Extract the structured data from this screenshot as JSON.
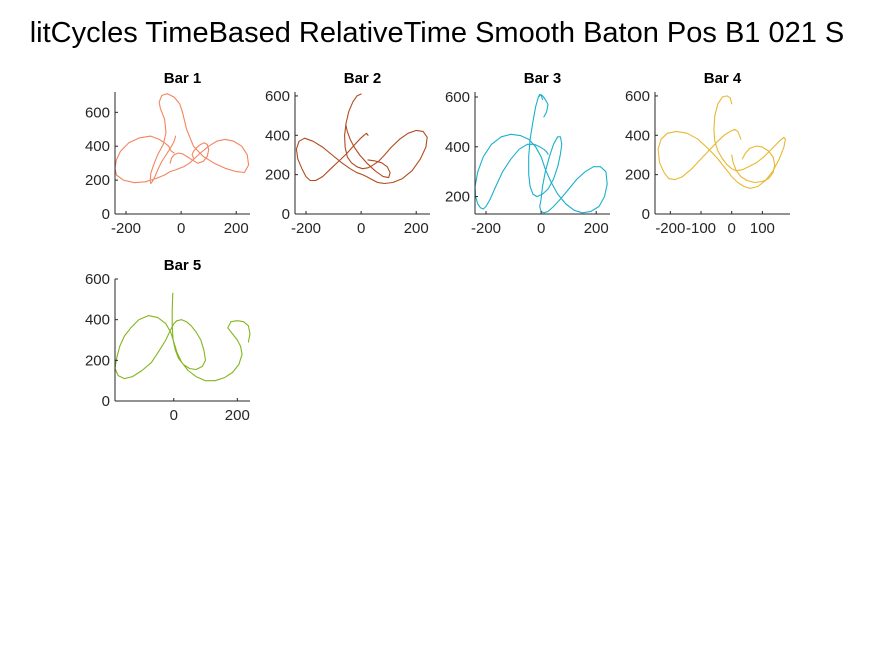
{
  "figure": {
    "title": "litCycles TimeBased RelativeTime Smooth Baton Pos B1 021 S"
  },
  "chart_data": [
    {
      "type": "line",
      "title": "Bar 1",
      "color": "#f4845f",
      "xlim": [
        -240,
        250
      ],
      "ylim": [
        0,
        720
      ],
      "xticks": [
        -200,
        0,
        200
      ],
      "yticks": [
        0,
        200,
        400,
        600
      ],
      "series": [
        {
          "x": [
            -20,
            -25,
            -35,
            -50,
            -70,
            -85,
            -95,
            -105,
            -110,
            -112,
            -110,
            -100,
            -85,
            -65,
            -55,
            -60,
            -75,
            -80,
            -70,
            -50,
            -25,
            -5,
            5,
            20,
            45,
            80,
            120,
            160,
            200,
            230,
            245,
            240,
            220,
            190,
            160,
            130,
            100,
            70,
            50,
            30,
            10,
            -5,
            -20,
            -40,
            -60,
            -90,
            -130,
            -170,
            -210,
            -235,
            -240,
            -235,
            -220,
            -190,
            -150,
            -110,
            -80,
            -60,
            -45,
            -40,
            -35,
            -30,
            -25
          ],
          "y": [
            460,
            430,
            400,
            360,
            310,
            260,
            220,
            190,
            180,
            200,
            240,
            290,
            350,
            410,
            480,
            560,
            620,
            660,
            700,
            710,
            690,
            650,
            600,
            500,
            400,
            340,
            300,
            270,
            250,
            245,
            290,
            350,
            400,
            430,
            440,
            430,
            400,
            360,
            330,
            300,
            280,
            270,
            260,
            250,
            230,
            210,
            190,
            185,
            200,
            230,
            270,
            320,
            370,
            420,
            450,
            460,
            440,
            420,
            400,
            380,
            370,
            365,
            360
          ]
        },
        {
          "x": [
            -40,
            -35,
            -25,
            -10,
            5,
            20,
            40,
            60,
            80,
            95,
            100,
            95,
            85,
            70,
            55,
            45,
            40,
            45
          ],
          "y": [
            300,
            330,
            350,
            360,
            355,
            340,
            320,
            300,
            310,
            340,
            380,
            410,
            420,
            410,
            390,
            370,
            350,
            330
          ]
        }
      ]
    },
    {
      "type": "line",
      "title": "Bar 2",
      "color": "#b34a1f",
      "xlim": [
        -240,
        250
      ],
      "ylim": [
        0,
        620
      ],
      "xticks": [
        -200,
        0,
        200
      ],
      "yticks": [
        0,
        200,
        400,
        600
      ],
      "series": [
        {
          "x": [
            0,
            -15,
            -30,
            -45,
            -55,
            -60,
            -58,
            -50,
            -35,
            -15,
            5,
            25,
            45,
            65,
            85,
            110,
            140,
            170,
            200,
            225,
            240,
            235,
            215,
            185,
            150,
            115,
            85,
            60,
            40,
            20,
            5,
            -15,
            -40,
            -70,
            -105,
            -140,
            -175,
            -205,
            -225,
            -235,
            -230,
            -215,
            -200,
            -185,
            -165,
            -140,
            -110,
            -80,
            -50,
            -25,
            -5,
            10,
            20,
            25
          ],
          "y": [
            610,
            600,
            570,
            520,
            460,
            400,
            340,
            290,
            260,
            240,
            230,
            235,
            250,
            270,
            300,
            340,
            380,
            410,
            425,
            420,
            390,
            340,
            280,
            220,
            180,
            160,
            155,
            160,
            175,
            190,
            200,
            210,
            230,
            260,
            300,
            340,
            370,
            385,
            370,
            330,
            280,
            230,
            190,
            170,
            170,
            190,
            230,
            270,
            310,
            350,
            380,
            400,
            410,
            400
          ]
        },
        {
          "x": [
            -55,
            -50,
            -40,
            -25,
            -5,
            20,
            50,
            80,
            100,
            105,
            95,
            75,
            50,
            25
          ],
          "y": [
            450,
            420,
            380,
            340,
            300,
            260,
            220,
            190,
            185,
            210,
            240,
            260,
            270,
            275
          ]
        }
      ]
    },
    {
      "type": "line",
      "title": "Bar 3",
      "color": "#1ab0cc",
      "xlim": [
        -240,
        250
      ],
      "ylim": [
        130,
        620
      ],
      "xticks": [
        -200,
        0,
        200
      ],
      "yticks": [
        200,
        400,
        600
      ],
      "series": [
        {
          "x": [
            5,
            0,
            -10,
            -20,
            -30,
            -40,
            -45,
            -45,
            -40,
            -30,
            -15,
            5,
            25,
            45,
            60,
            70,
            75,
            70,
            60,
            45,
            30,
            15,
            5,
            0,
            -5,
            0,
            10,
            25,
            45,
            70,
            100,
            130,
            160,
            190,
            215,
            235,
            240,
            230,
            210,
            180,
            150,
            120,
            90,
            60,
            35,
            15,
            0,
            -20,
            -45,
            -75,
            -110,
            -145,
            -180,
            -210,
            -230,
            -240,
            -238,
            -230,
            -220,
            -210,
            -200,
            -185,
            -165,
            -140,
            -110,
            -80,
            -50,
            -25,
            -5,
            10,
            20,
            25
          ],
          "y": [
            590,
            610,
            600,
            560,
            500,
            430,
            360,
            290,
            240,
            210,
            200,
            210,
            230,
            270,
            320,
            370,
            410,
            440,
            440,
            410,
            360,
            300,
            240,
            190,
            160,
            140,
            135,
            140,
            160,
            190,
            230,
            270,
            300,
            320,
            320,
            300,
            250,
            200,
            160,
            140,
            135,
            145,
            170,
            210,
            260,
            310,
            360,
            400,
            430,
            445,
            450,
            440,
            410,
            360,
            300,
            240,
            200,
            170,
            155,
            150,
            160,
            190,
            240,
            300,
            350,
            390,
            410,
            410,
            400,
            390,
            380,
            370
          ]
        },
        {
          "x": [
            -10,
            -5,
            5,
            15,
            25,
            20,
            10
          ],
          "y": [
            600,
            610,
            605,
            590,
            570,
            540,
            520
          ]
        }
      ]
    },
    {
      "type": "line",
      "title": "Bar 4",
      "color": "#e8b830",
      "xlim": [
        -250,
        190
      ],
      "ylim": [
        0,
        620
      ],
      "xticks": [
        -200,
        -100,
        0,
        100
      ],
      "yticks": [
        0,
        200,
        400,
        600
      ],
      "series": [
        {
          "x": [
            0,
            -5,
            -15,
            -30,
            -45,
            -55,
            -58,
            -55,
            -45,
            -30,
            -15,
            0,
            15,
            35,
            55,
            80,
            105,
            130,
            155,
            170,
            175,
            170,
            155,
            135,
            110,
            85,
            60,
            40,
            20,
            0,
            -20,
            -45,
            -75,
            -110,
            -145,
            -180,
            -210,
            -230,
            -240,
            -235,
            -220,
            -205,
            -185,
            -160,
            -130,
            -100,
            -70,
            -45,
            -25,
            -5,
            10,
            20,
            25,
            30
          ],
          "y": [
            560,
            590,
            600,
            595,
            560,
            500,
            430,
            370,
            320,
            280,
            250,
            230,
            220,
            225,
            240,
            260,
            290,
            330,
            370,
            390,
            380,
            340,
            280,
            220,
            170,
            140,
            130,
            140,
            160,
            190,
            230,
            280,
            330,
            380,
            410,
            420,
            410,
            380,
            330,
            260,
            210,
            180,
            175,
            190,
            230,
            280,
            330,
            370,
            400,
            420,
            430,
            420,
            400,
            380
          ]
        },
        {
          "x": [
            0,
            5,
            15,
            30,
            50,
            75,
            100,
            120,
            135,
            140,
            135,
            120,
            100,
            80,
            60,
            45,
            35
          ],
          "y": [
            300,
            260,
            220,
            190,
            170,
            160,
            165,
            180,
            210,
            250,
            290,
            320,
            340,
            345,
            335,
            310,
            280
          ]
        }
      ]
    },
    {
      "type": "line",
      "title": "Bar 5",
      "color": "#84b520",
      "xlim": [
        -185,
        240
      ],
      "ylim": [
        0,
        600
      ],
      "xticks": [
        0,
        200
      ],
      "yticks": [
        0,
        200,
        400,
        600
      ],
      "series": [
        {
          "x": [
            -3,
            -5,
            -5,
            -2,
            5,
            15,
            30,
            50,
            70,
            90,
            100,
            95,
            85,
            70,
            55,
            40,
            25,
            10,
            0,
            -10,
            -25,
            -45,
            -70,
            -100,
            -130,
            -155,
            -175,
            -185,
            -180,
            -170,
            -155,
            -135,
            -110,
            -80,
            -50,
            -25,
            -10,
            0,
            10,
            25,
            45,
            70,
            100,
            130,
            160,
            185,
            205,
            215,
            210,
            200,
            185,
            170,
            180,
            200,
            220,
            235,
            240,
            235
          ],
          "y": [
            530,
            450,
            370,
            300,
            250,
            210,
            180,
            160,
            155,
            170,
            200,
            250,
            300,
            340,
            370,
            390,
            400,
            395,
            380,
            350,
            300,
            250,
            190,
            150,
            120,
            110,
            125,
            160,
            210,
            270,
            320,
            360,
            400,
            420,
            410,
            380,
            340,
            290,
            240,
            190,
            150,
            120,
            100,
            100,
            115,
            140,
            180,
            230,
            270,
            300,
            330,
            360,
            390,
            395,
            390,
            370,
            330,
            290
          ]
        }
      ]
    }
  ]
}
